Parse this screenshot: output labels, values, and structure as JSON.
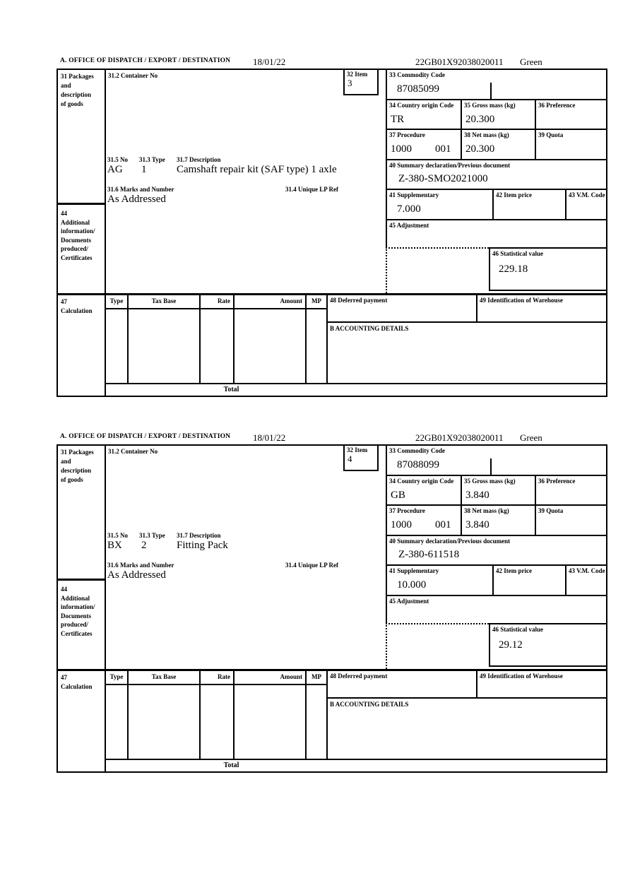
{
  "form": {
    "section_a_label": "A.  OFFICE OF DISPATCH / EXPORT / DESTINATION",
    "date": "18/01/22",
    "mrn": "22GB01X92038020011",
    "routing": "Green"
  },
  "labels": {
    "box31": "31 Packages\nand\ndescription\nof goods",
    "box44": "44\nAdditional\ninformation/\nDocuments\nproduced/\nCertificates",
    "box47": "47\nCalculation",
    "container_no": "31.2 Container No",
    "item": "32 Item",
    "commodity": "33 Commodity Code",
    "origin": "34 Country origin Code",
    "gross_mass": "35 Gross mass (kg)",
    "preference": "36 Preference",
    "procedure": "37 Procedure",
    "net_mass": "38 Net mass (kg)",
    "quota": "39 Quota",
    "previous_document": "40 Summary declaration/Previous document",
    "supplementary": "41 Supplementary",
    "item_price": "42 Item price",
    "vm_code": "43 V.M. Code",
    "adjustment": "45 Adjustment",
    "statistical_value": "46 Statistical value",
    "pkg_no": "31.5 No",
    "pkg_type": "31.3 Type",
    "pkg_description": "31.7 Description",
    "marks_and_number": "31.6 Marks and Number",
    "unique_lp_ref": "31.4 Unique LP Ref",
    "calc_type": "Type",
    "tax_base": "Tax Base",
    "rate": "Rate",
    "amount": "Amount",
    "mp": "MP",
    "deferred_payment": "48 Deferred payment",
    "warehouse_id": "49 Identification of Warehouse",
    "accounting_details": "B ACCOUNTING DETAILS",
    "total": "Total"
  },
  "items": [
    {
      "item_no": "3",
      "commodity_code": "87085099",
      "origin": "TR",
      "gross_mass": "20.300",
      "procedure": "1000",
      "procedure2": "001",
      "net_mass": "20.300",
      "previous_document": "Z-380-SMO2021000",
      "supplementary": "7.000",
      "statistical_value": "229.18",
      "package_code": "AG",
      "package_type": "1",
      "description": "Camshaft repair kit (SAF type) 1 axle",
      "marks": "As Addressed"
    },
    {
      "item_no": "4",
      "commodity_code": "87088099",
      "origin": "GB",
      "gross_mass": "3.840",
      "procedure": "1000",
      "procedure2": "001",
      "net_mass": "3.840",
      "previous_document": "Z-380-611518",
      "supplementary": "10.000",
      "statistical_value": "29.12",
      "package_code": "BX",
      "package_type": "2",
      "description": "Fitting Pack",
      "marks": "As Addressed"
    }
  ]
}
